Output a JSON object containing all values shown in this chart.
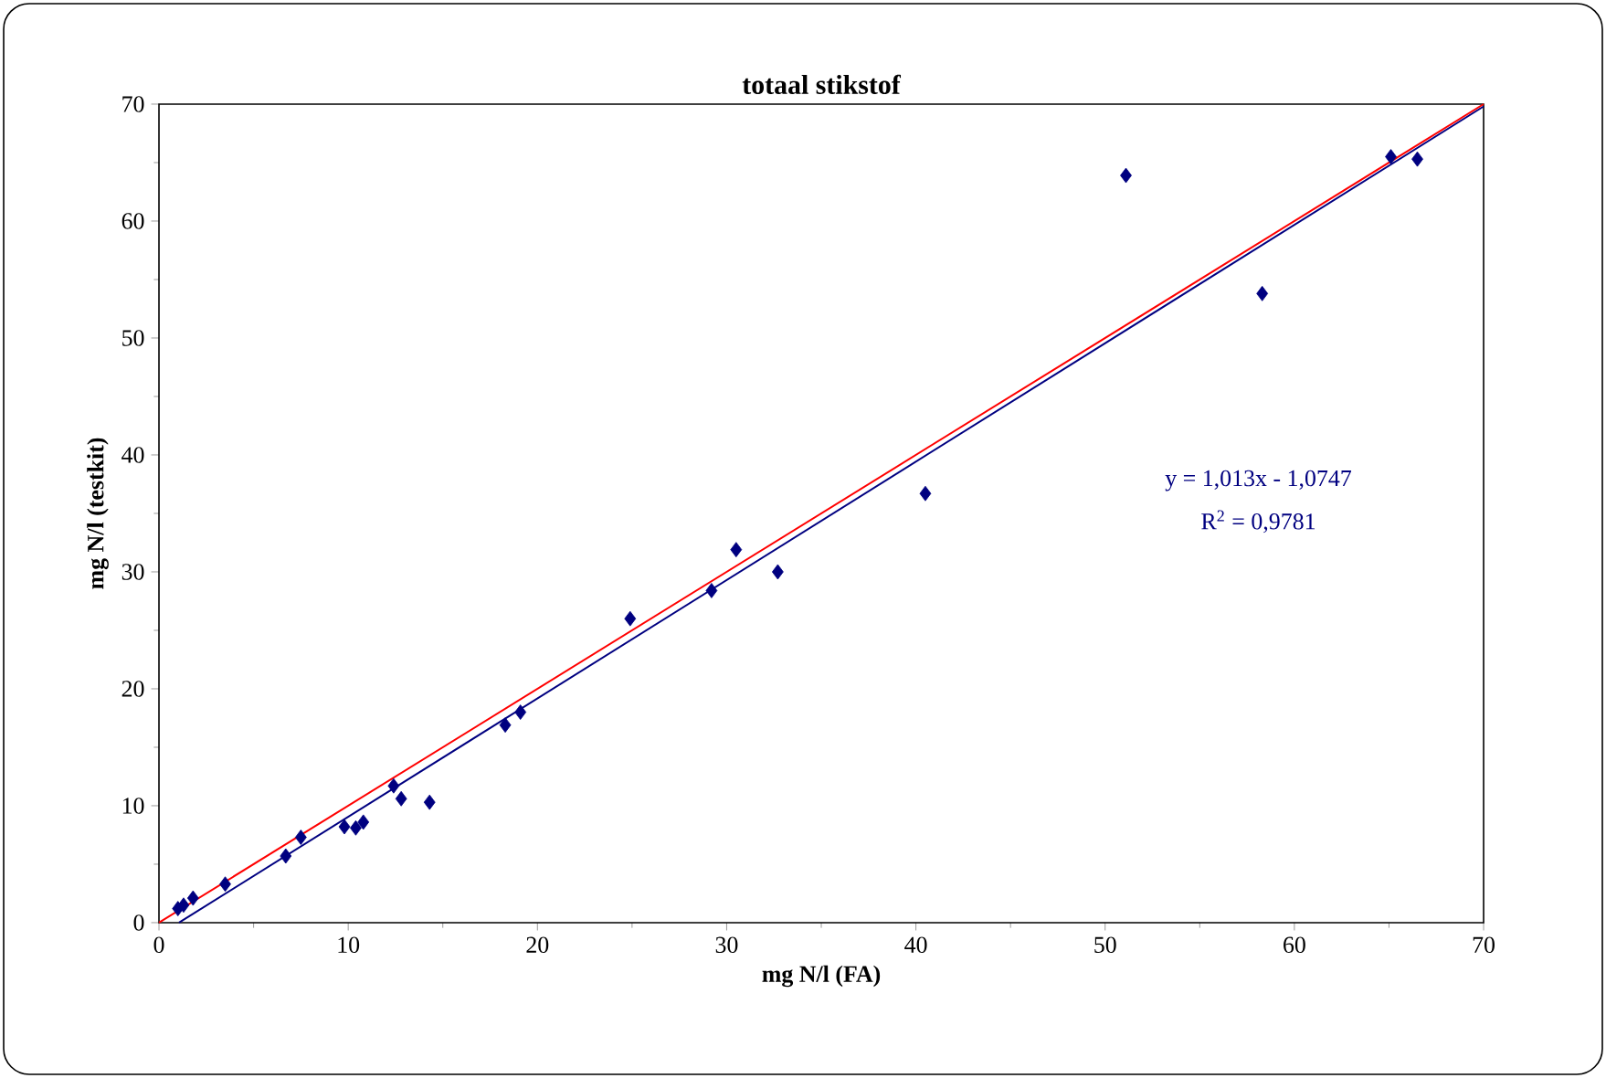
{
  "chart_data": {
    "type": "scatter",
    "title": "totaal stikstof",
    "xlabel": "mg N/l (FA)",
    "ylabel": "mg N/l (testkit)",
    "xlim": [
      0,
      70
    ],
    "ylim": [
      0,
      70
    ],
    "xticks": [
      0,
      10,
      20,
      30,
      40,
      50,
      60,
      70
    ],
    "yticks": [
      0,
      10,
      20,
      30,
      40,
      50,
      60,
      70
    ],
    "marker": "diamond",
    "series": [
      {
        "color": "#000080",
        "x": [
          1.0,
          1.3,
          1.8,
          3.5,
          6.7,
          7.5,
          9.8,
          10.4,
          10.8,
          12.4,
          12.8,
          14.3,
          18.3,
          19.1,
          24.9,
          29.2,
          30.5,
          32.7,
          40.5,
          51.1,
          58.3,
          65.1,
          66.5
        ],
        "values": [
          1.2,
          1.5,
          2.1,
          3.3,
          5.7,
          7.3,
          8.2,
          8.1,
          8.6,
          11.7,
          10.6,
          10.3,
          16.9,
          18.0,
          26.0,
          28.4,
          31.9,
          30.0,
          36.7,
          63.9,
          53.8,
          65.5,
          65.3
        ]
      },
      {
        "type": "line",
        "marker": "none",
        "color": "#000080",
        "x": [
          1.06,
          70
        ],
        "values": [
          0.0,
          69.8
        ]
      },
      {
        "type": "line",
        "marker": "none",
        "color": "#ff0000",
        "x": [
          0,
          70
        ],
        "values": [
          0,
          70
        ]
      }
    ],
    "annotations": [
      "y = 1,013x - 1,0747",
      "R$^{2}$ = 0,9781"
    ]
  }
}
